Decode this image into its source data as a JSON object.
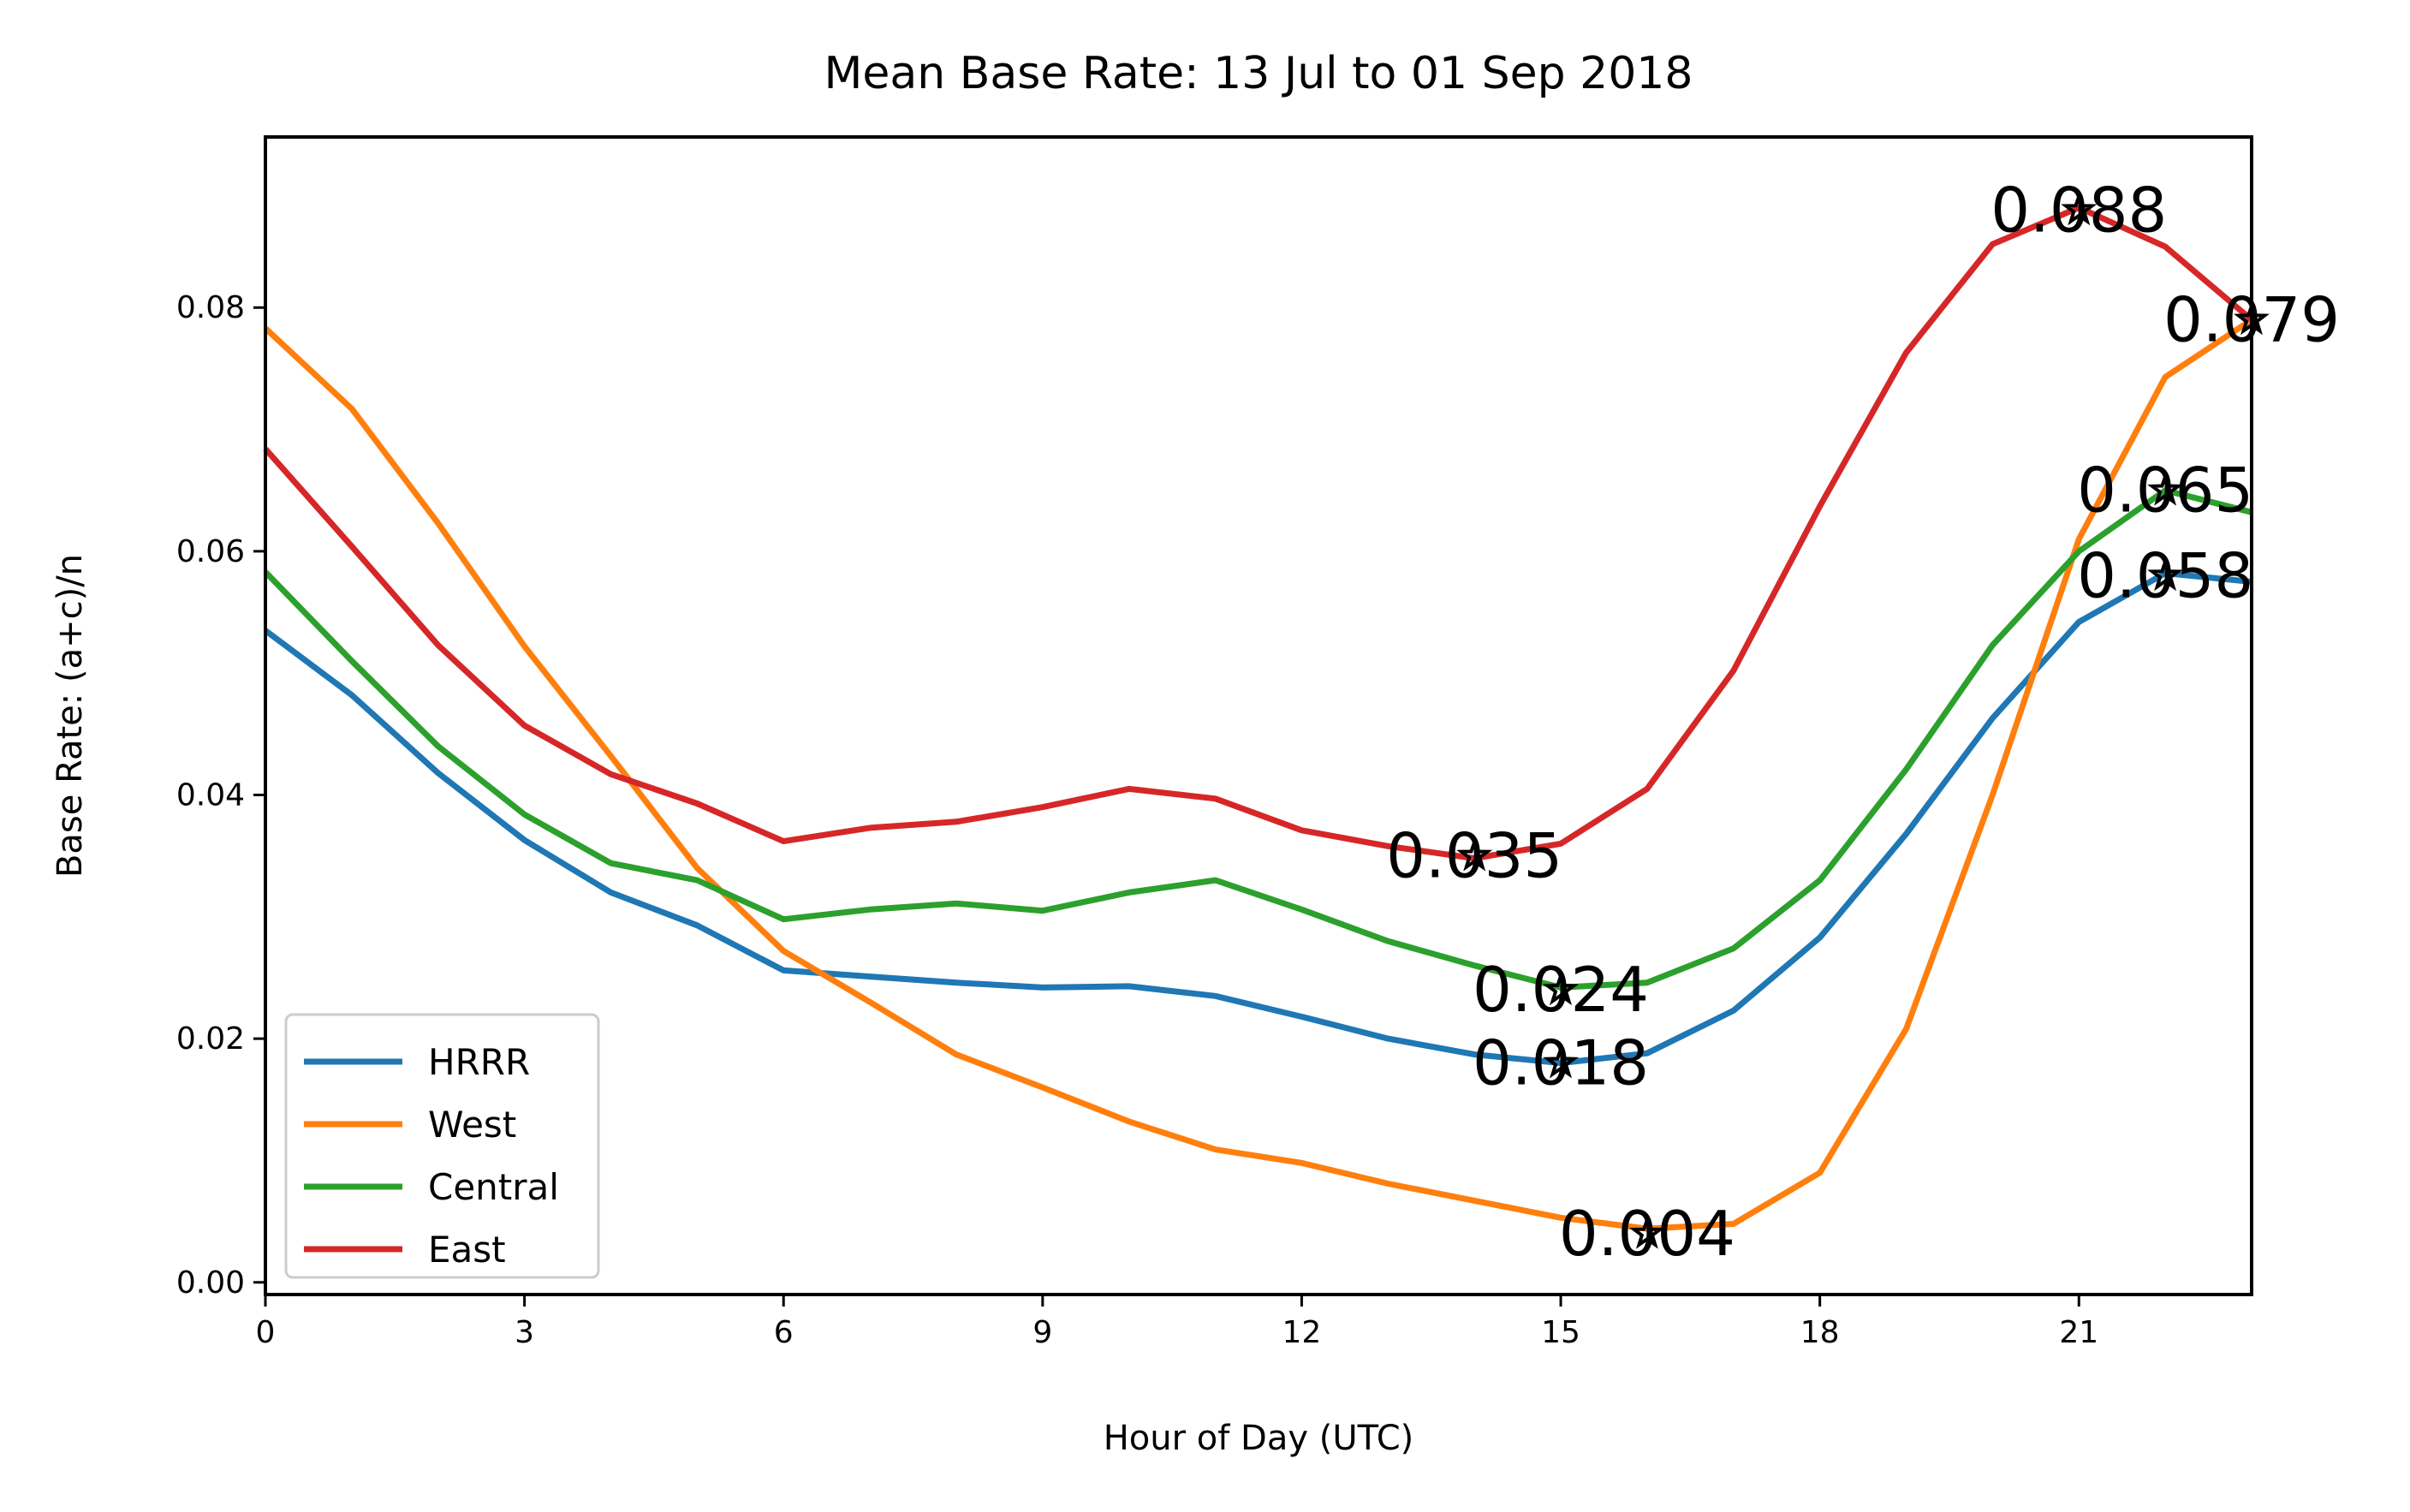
{
  "chart_data": {
    "type": "line",
    "title": "Mean Base Rate: 13 Jul to 01 Sep 2018",
    "xlabel": "Hour of Day (UTC)",
    "ylabel": "Base Rate: (a+c)/n",
    "xlim": [
      0,
      23
    ],
    "ylim": [
      -0.001,
      0.094
    ],
    "xticks": [
      0,
      3,
      6,
      9,
      12,
      15,
      18,
      21
    ],
    "xtick_labels": [
      "0",
      "3",
      "6",
      "9",
      "12",
      "15",
      "18",
      "21"
    ],
    "yticks": [
      0.0,
      0.02,
      0.04,
      0.06,
      0.08
    ],
    "ytick_labels": [
      "0.00",
      "0.02",
      "0.04",
      "0.06",
      "0.08"
    ],
    "grid": false,
    "legend_position": "lower-left",
    "x": [
      0,
      1,
      2,
      3,
      4,
      5,
      6,
      7,
      8,
      9,
      10,
      11,
      12,
      13,
      14,
      15,
      16,
      17,
      18,
      19,
      20,
      21,
      22,
      23
    ],
    "series": [
      {
        "name": "HRRR",
        "color": "#1f77b4",
        "values": [
          0.0535,
          0.0482,
          0.0418,
          0.0363,
          0.032,
          0.0293,
          0.0256,
          0.0251,
          0.0246,
          0.0242,
          0.0243,
          0.0235,
          0.0218,
          0.02,
          0.0187,
          0.018,
          0.0188,
          0.0223,
          0.0283,
          0.0368,
          0.0463,
          0.0542,
          0.0582,
          0.0575
        ]
      },
      {
        "name": "West",
        "color": "#ff7f0e",
        "values": [
          0.0783,
          0.0717,
          0.0623,
          0.0522,
          0.0432,
          0.034,
          0.0272,
          0.023,
          0.0187,
          0.016,
          0.0132,
          0.0109,
          0.0098,
          0.0081,
          0.0067,
          0.0053,
          0.0044,
          0.0048,
          0.009,
          0.0208,
          0.04,
          0.061,
          0.0743,
          0.079
        ]
      },
      {
        "name": "Central",
        "color": "#2ca02c",
        "values": [
          0.0583,
          0.051,
          0.044,
          0.0384,
          0.0344,
          0.033,
          0.0298,
          0.0306,
          0.0311,
          0.0305,
          0.032,
          0.033,
          0.0306,
          0.028,
          0.026,
          0.0242,
          0.0246,
          0.0274,
          0.033,
          0.0421,
          0.0523,
          0.06,
          0.065,
          0.0632
        ]
      },
      {
        "name": "East",
        "color": "#d62728",
        "values": [
          0.0684,
          0.0604,
          0.0523,
          0.0457,
          0.0417,
          0.0393,
          0.0362,
          0.0373,
          0.0378,
          0.039,
          0.0405,
          0.0397,
          0.0371,
          0.0358,
          0.0348,
          0.036,
          0.0405,
          0.0502,
          0.0637,
          0.0763,
          0.0852,
          0.0882,
          0.085,
          0.079
        ]
      }
    ],
    "annotations": [
      {
        "x": 21,
        "y": 0.088,
        "text": "0.088",
        "series": "East"
      },
      {
        "x": 23,
        "y": 0.079,
        "text": "0.079",
        "series": "West"
      },
      {
        "x": 22,
        "y": 0.065,
        "text": "0.065",
        "series": "Central"
      },
      {
        "x": 22,
        "y": 0.058,
        "text": "0.058",
        "series": "HRRR"
      },
      {
        "x": 14,
        "y": 0.035,
        "text": "0.035",
        "series": "East"
      },
      {
        "x": 15,
        "y": 0.024,
        "text": "0.024",
        "series": "Central"
      },
      {
        "x": 15,
        "y": 0.018,
        "text": "0.018",
        "series": "HRRR"
      },
      {
        "x": 16,
        "y": 0.004,
        "text": "0.004",
        "series": "West"
      }
    ]
  }
}
